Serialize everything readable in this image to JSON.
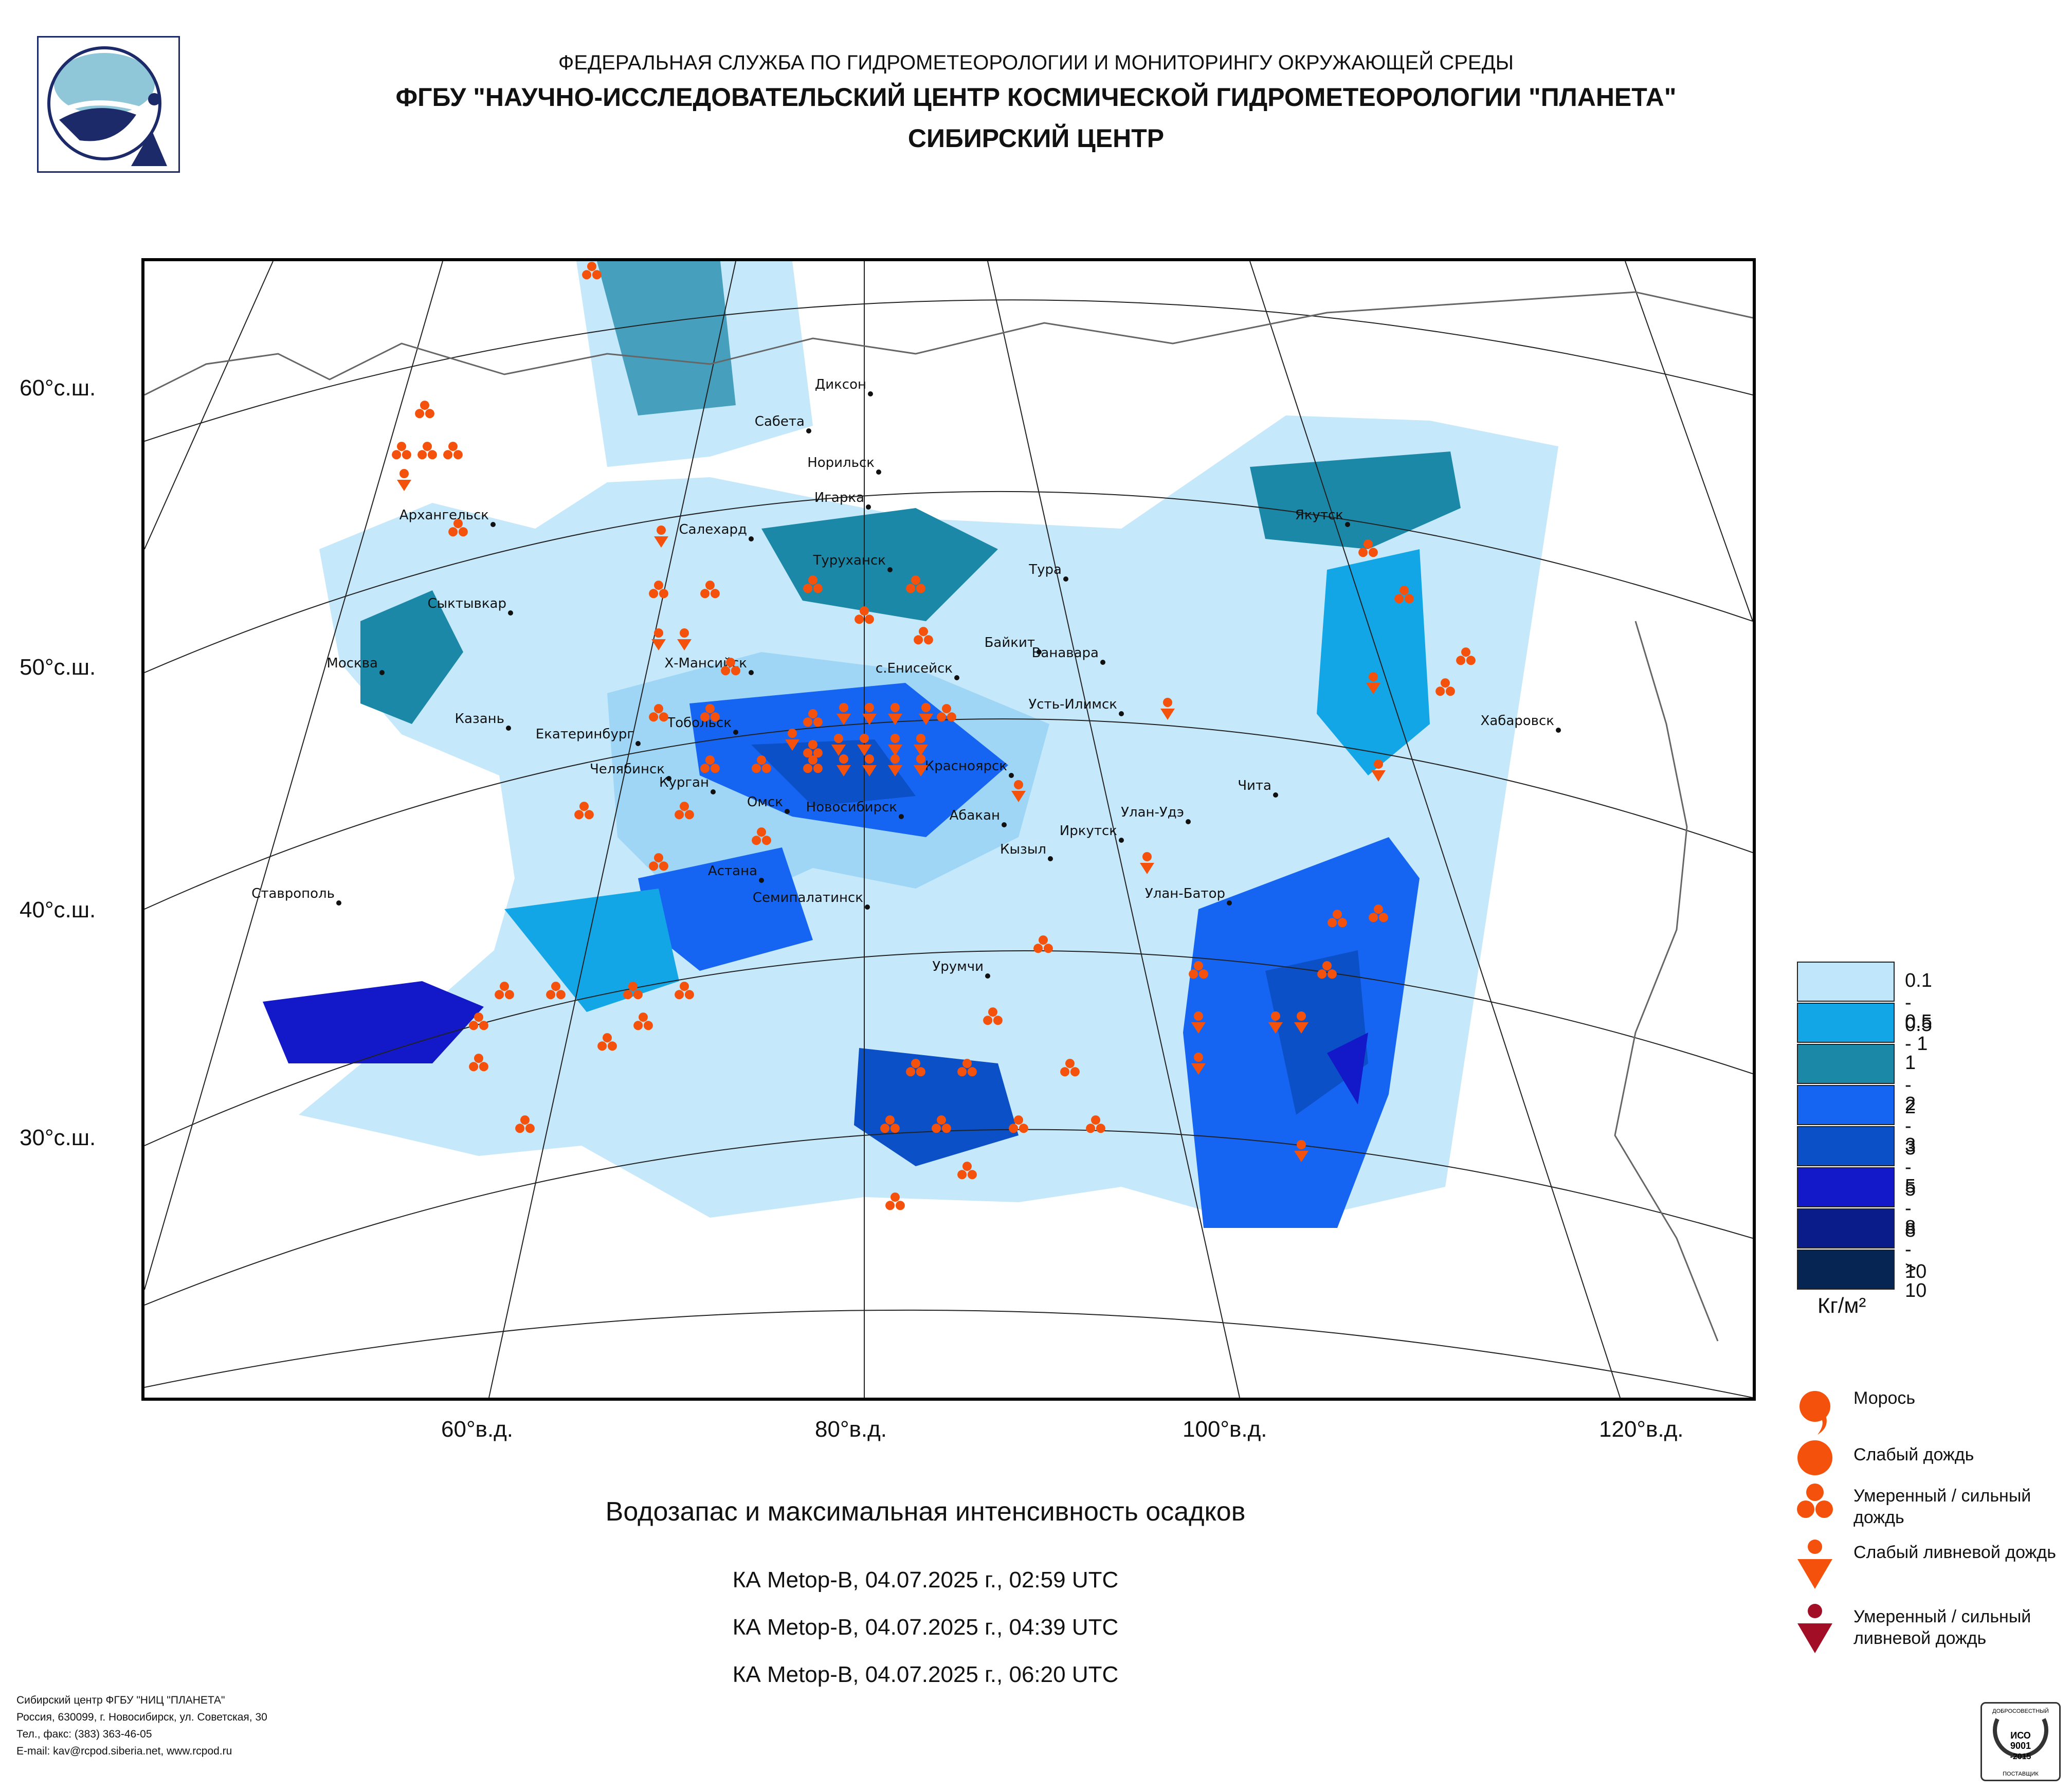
{
  "header": {
    "line1": "ФЕДЕРАЛЬНАЯ СЛУЖБА ПО ГИДРОМЕТЕОРОЛОГИИ И МОНИТОРИНГУ ОКРУЖАЮЩЕЙ СРЕДЫ",
    "line2": "ФГБУ \"НАУЧНО-ИССЛЕДОВАТЕЛЬСКИЙ ЦЕНТР КОСМИЧЕСКОЙ ГИДРОМЕТЕОРОЛОГИИ \"ПЛАНЕТА\"",
    "line3": "СИБИРСКИЙ ЦЕНТР"
  },
  "map": {
    "lat_labels": [
      "60°с.ш.",
      "50°с.ш.",
      "40°с.ш.",
      "30°с.ш."
    ],
    "lon_labels": [
      "60°в.д.",
      "80°в.д.",
      "100°в.д.",
      "120°в.д."
    ],
    "cities": [
      {
        "name": "Диксон"
      },
      {
        "name": "Сабета"
      },
      {
        "name": "Норильск"
      },
      {
        "name": "Игарка"
      },
      {
        "name": "Салехард"
      },
      {
        "name": "Туруханск"
      },
      {
        "name": "Тура"
      },
      {
        "name": "Якутск"
      },
      {
        "name": "Архангельск"
      },
      {
        "name": "Сыктывкар"
      },
      {
        "name": "Байкит"
      },
      {
        "name": "Ванавара"
      },
      {
        "name": "Москва"
      },
      {
        "name": "Х-Мансийск"
      },
      {
        "name": "с.Енисейск"
      },
      {
        "name": "Усть-Илимск"
      },
      {
        "name": "Хабаровск"
      },
      {
        "name": "Казань"
      },
      {
        "name": "Тобольск"
      },
      {
        "name": "Екатеринбург"
      },
      {
        "name": "Красноярск"
      },
      {
        "name": "Челябинск"
      },
      {
        "name": "Курган"
      },
      {
        "name": "Чита"
      },
      {
        "name": "Омск"
      },
      {
        "name": "Новосибирск"
      },
      {
        "name": "Абакан"
      },
      {
        "name": "Улан-Удэ"
      },
      {
        "name": "Иркутск"
      },
      {
        "name": "Кызыл"
      },
      {
        "name": "Астана"
      },
      {
        "name": "Ставрополь"
      },
      {
        "name": "Семипалатинск"
      },
      {
        "name": "Улан-Батор"
      },
      {
        "name": "Урумчи"
      }
    ]
  },
  "title": "Водозапас и максимальная интенсивность осадков",
  "passes": [
    "КА Metop-B, 04.07.2025 г., 02:59 UTC",
    "КА Metop-B, 04.07.2025 г., 04:39 UTC",
    "КА Metop-B, 04.07.2025 г., 06:20 UTC"
  ],
  "legend": {
    "classes": [
      {
        "label": "0.1 - 0.5",
        "color": "#bfe6fb"
      },
      {
        "label": "0.5 - 1",
        "color": "#12a6e6"
      },
      {
        "label": "1 - 2",
        "color": "#1b88a8"
      },
      {
        "label": "2 - 3",
        "color": "#1665f2"
      },
      {
        "label": "3 - 5",
        "color": "#0c50c8"
      },
      {
        "label": "5 - 8",
        "color": "#1318c8"
      },
      {
        "label": "8 - 10",
        "color": "#0a1b8a"
      },
      {
        "label": "> 10",
        "color": "#062552"
      }
    ],
    "unit": "Кг/м²",
    "symbols": [
      {
        "icon": "drizzle-icon",
        "label": "Морось"
      },
      {
        "icon": "light-rain-icon",
        "label": "Слабый дождь"
      },
      {
        "icon": "moderate-rain-icon",
        "label": "Умеренный / сильный дождь"
      },
      {
        "icon": "light-shower-icon",
        "label": "Слабый ливневой дождь"
      },
      {
        "icon": "heavy-shower-icon",
        "label": "Умеренный / сильный ливневой дождь"
      }
    ],
    "symbol_color": "#f4520c",
    "heavy_color": "#a10e25"
  },
  "footer": {
    "lines": [
      "Сибирский центр ФГБУ \"НИЦ \"ПЛАНЕТА\"",
      "Россия, 630099, г. Новосибирск, ул. Советская, 30",
      "Тел., факс: (383) 363-46-05",
      "E-mail: kav@rcpod.siberia.net, www.rcpod.ru"
    ]
  },
  "iso_badge": {
    "top": "ДОБРОСОВЕСТНЫЙ",
    "l1": "ИСО",
    "l2": "9001",
    "l3": "-2015",
    "bottom": "ПОСТАВЩИК"
  }
}
